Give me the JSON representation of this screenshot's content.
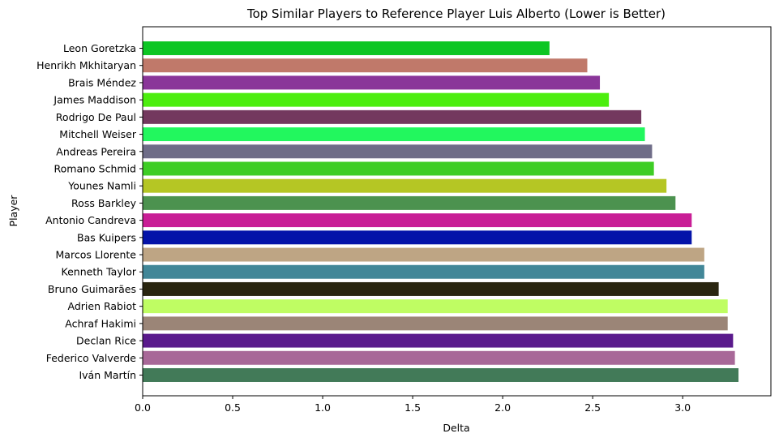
{
  "chart_data": {
    "type": "bar",
    "orientation": "horizontal",
    "title": "Top Similar Players to Reference Player Luis Alberto (Lower is Better)",
    "xlabel": "Delta",
    "ylabel": "Player",
    "xlim": [
      0,
      3.49
    ],
    "xticks": [
      0.0,
      0.5,
      1.0,
      1.5,
      2.0,
      2.5,
      3.0
    ],
    "xtick_labels": [
      "0.0",
      "0.5",
      "1.0",
      "1.5",
      "2.0",
      "2.5",
      "3.0"
    ],
    "grid": false,
    "legend": "none",
    "categories": [
      "Leon Goretzka",
      "Henrikh Mkhitaryan",
      "Brais Méndez",
      "James Maddison",
      "Rodrigo De Paul",
      "Mitchell Weiser",
      "Andreas Pereira",
      "Romano Schmid",
      "Younes Namli",
      "Ross Barkley",
      "Antonio Candreva",
      "Bas Kuipers",
      "Marcos Llorente",
      "Kenneth Taylor",
      "Bruno Guimarães",
      "Adrien Rabiot",
      "Achraf Hakimi",
      "Declan Rice",
      "Federico Valverde",
      "Iván Martín"
    ],
    "values": [
      2.26,
      2.47,
      2.54,
      2.59,
      2.77,
      2.79,
      2.83,
      2.84,
      2.91,
      2.96,
      3.05,
      3.05,
      3.12,
      3.12,
      3.2,
      3.25,
      3.25,
      3.28,
      3.29,
      3.31
    ],
    "colors": [
      "#0dc624",
      "#c0796a",
      "#8a3699",
      "#4cee0e",
      "#73385e",
      "#22f75e",
      "#6f6d88",
      "#3ecd25",
      "#b5c624",
      "#4c924f",
      "#c91e96",
      "#0413a9",
      "#bea584",
      "#428798",
      "#2a2610",
      "#bffd63",
      "#9b8577",
      "#5a1a8c",
      "#a86898",
      "#427a58"
    ]
  }
}
